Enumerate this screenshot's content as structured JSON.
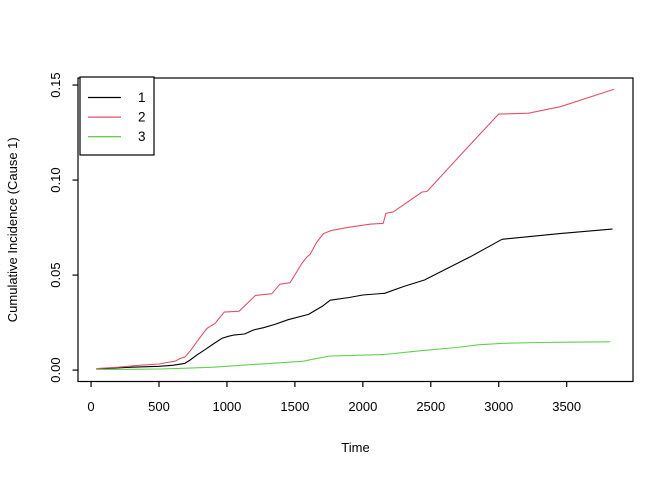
{
  "chart_data": {
    "type": "line",
    "title": "",
    "xlabel": "Time",
    "ylabel": "Cumulative Incidence (Cause 1)",
    "x_ticks": [
      0,
      500,
      1000,
      1500,
      2000,
      2500,
      3000,
      3500
    ],
    "x_tick_labels": [
      "0",
      "500",
      "1000",
      "1500",
      "2000",
      "2500",
      "3000",
      "3500"
    ],
    "y_ticks": [
      0,
      0.05,
      0.1,
      0.15
    ],
    "y_tick_labels": [
      "0.00",
      "0.05",
      "0.10",
      "0.15"
    ],
    "xlim": [
      -96,
      3988
    ],
    "ylim": [
      -0.006,
      0.1537
    ],
    "grid": false,
    "box": true,
    "legend": {
      "position": "top-left",
      "entries": [
        {
          "label": "1",
          "color": "#000000"
        },
        {
          "label": "2",
          "color": "#DF536B"
        },
        {
          "label": "3",
          "color": "#61D04F"
        }
      ]
    },
    "series": [
      {
        "name": "1",
        "color": "#000000",
        "points": [
          [
            42,
            0.0005
          ],
          [
            150,
            0.001
          ],
          [
            300,
            0.0015
          ],
          [
            500,
            0.002
          ],
          [
            600,
            0.0025
          ],
          [
            690,
            0.0035
          ],
          [
            729,
            0.0053
          ],
          [
            780,
            0.008
          ],
          [
            852,
            0.0114
          ],
          [
            905,
            0.014
          ],
          [
            962,
            0.0167
          ],
          [
            1010,
            0.0178
          ],
          [
            1048,
            0.0184
          ],
          [
            1130,
            0.019
          ],
          [
            1195,
            0.0211
          ],
          [
            1269,
            0.0223
          ],
          [
            1350,
            0.024
          ],
          [
            1450,
            0.0265
          ],
          [
            1600,
            0.0293
          ],
          [
            1700,
            0.0335
          ],
          [
            1760,
            0.0368
          ],
          [
            1900,
            0.0382
          ],
          [
            2000,
            0.0395
          ],
          [
            2160,
            0.0404
          ],
          [
            2300,
            0.044
          ],
          [
            2454,
            0.0474
          ],
          [
            2600,
            0.0527
          ],
          [
            2791,
            0.0596
          ],
          [
            3024,
            0.0688
          ],
          [
            3200,
            0.0701
          ],
          [
            3450,
            0.0718
          ],
          [
            3834,
            0.0742
          ]
        ]
      },
      {
        "name": "2",
        "color": "#DF536B",
        "points": [
          [
            42,
            0.0008
          ],
          [
            200,
            0.0015
          ],
          [
            350,
            0.0025
          ],
          [
            500,
            0.0032
          ],
          [
            560,
            0.004
          ],
          [
            620,
            0.0047
          ],
          [
            645,
            0.0058
          ],
          [
            692,
            0.007
          ],
          [
            735,
            0.0105
          ],
          [
            778,
            0.0149
          ],
          [
            852,
            0.0219
          ],
          [
            913,
            0.0246
          ],
          [
            980,
            0.0305
          ],
          [
            1090,
            0.031
          ],
          [
            1210,
            0.0393
          ],
          [
            1330,
            0.0402
          ],
          [
            1390,
            0.0452
          ],
          [
            1465,
            0.046
          ],
          [
            1551,
            0.0561
          ],
          [
            1590,
            0.0596
          ],
          [
            1612,
            0.0609
          ],
          [
            1660,
            0.0672
          ],
          [
            1711,
            0.0719
          ],
          [
            1770,
            0.0735
          ],
          [
            1900,
            0.0752
          ],
          [
            2060,
            0.0768
          ],
          [
            2150,
            0.0772
          ],
          [
            2170,
            0.0825
          ],
          [
            2225,
            0.0833
          ],
          [
            2436,
            0.0937
          ],
          [
            2472,
            0.094
          ],
          [
            2700,
            0.1117
          ],
          [
            2850,
            0.1233
          ],
          [
            2999,
            0.1347
          ],
          [
            3220,
            0.1352
          ],
          [
            3454,
            0.1386
          ],
          [
            3846,
            0.1477
          ]
        ]
      },
      {
        "name": "3",
        "color": "#61D04F",
        "points": [
          [
            42,
            0.0003
          ],
          [
            300,
            0.0004
          ],
          [
            508,
            0.0006
          ],
          [
            700,
            0.001
          ],
          [
            900,
            0.0015
          ],
          [
            1100,
            0.0025
          ],
          [
            1318,
            0.0035
          ],
          [
            1563,
            0.0047
          ],
          [
            1650,
            0.006
          ],
          [
            1760,
            0.0074
          ],
          [
            1950,
            0.0078
          ],
          [
            2160,
            0.0082
          ],
          [
            2400,
            0.01
          ],
          [
            2688,
            0.0119
          ],
          [
            2850,
            0.0133
          ],
          [
            3031,
            0.0141
          ],
          [
            3300,
            0.0145
          ],
          [
            3500,
            0.0147
          ],
          [
            3817,
            0.0149
          ]
        ]
      }
    ]
  },
  "colors": {
    "background": "#ffffff",
    "axis": "#000000",
    "text": "#000000"
  }
}
